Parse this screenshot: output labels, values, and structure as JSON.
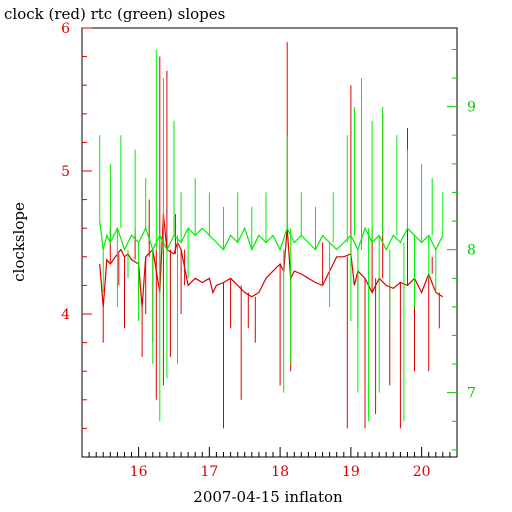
{
  "chart_data": {
    "type": "line",
    "title": "clock (red) rtc (green) slopes",
    "xlabel": "2007-04-15 inflaton",
    "ylabel": "clockslope",
    "y2label": "",
    "x_ticks": [
      "16",
      "17",
      "18",
      "19",
      "20"
    ],
    "y_ticks": [
      "4",
      "5",
      "6"
    ],
    "y2_ticks": [
      "7",
      "8",
      "9"
    ],
    "xlim": [
      15.2,
      20.5
    ],
    "ylim": [
      3.0,
      6.0
    ],
    "y2lim": [
      6.55,
      9.55
    ],
    "grid": false,
    "series": [
      {
        "name": "clock",
        "color": "#dd0000",
        "points": [
          [
            15.45,
            4.35
          ],
          [
            15.5,
            4.05
          ],
          [
            15.55,
            4.38
          ],
          [
            15.6,
            4.35
          ],
          [
            15.7,
            4.42
          ],
          [
            15.75,
            4.45
          ],
          [
            15.8,
            4.4
          ],
          [
            15.85,
            4.42
          ],
          [
            15.9,
            4.38
          ],
          [
            16.0,
            4.35
          ],
          [
            16.05,
            4.05
          ],
          [
            16.1,
            4.4
          ],
          [
            16.2,
            4.45
          ],
          [
            16.3,
            4.15
          ],
          [
            16.35,
            4.7
          ],
          [
            16.4,
            4.45
          ],
          [
            16.5,
            4.42
          ],
          [
            16.55,
            4.5
          ],
          [
            16.6,
            4.45
          ],
          [
            16.7,
            4.2
          ],
          [
            16.8,
            4.25
          ],
          [
            16.9,
            4.22
          ],
          [
            17.0,
            4.25
          ],
          [
            17.05,
            4.15
          ],
          [
            17.1,
            4.2
          ],
          [
            17.2,
            4.22
          ],
          [
            17.3,
            4.25
          ],
          [
            17.4,
            4.2
          ],
          [
            17.5,
            4.15
          ],
          [
            17.6,
            4.12
          ],
          [
            17.7,
            4.15
          ],
          [
            17.8,
            4.25
          ],
          [
            17.9,
            4.3
          ],
          [
            18.0,
            4.35
          ],
          [
            18.05,
            4.3
          ],
          [
            18.1,
            4.6
          ],
          [
            18.15,
            4.25
          ],
          [
            18.2,
            4.3
          ],
          [
            18.3,
            4.28
          ],
          [
            18.4,
            4.25
          ],
          [
            18.5,
            4.22
          ],
          [
            18.6,
            4.2
          ],
          [
            18.7,
            4.3
          ],
          [
            18.8,
            4.4
          ],
          [
            18.9,
            4.4
          ],
          [
            19.0,
            4.42
          ],
          [
            19.05,
            4.2
          ],
          [
            19.1,
            4.3
          ],
          [
            19.2,
            4.25
          ],
          [
            19.3,
            4.15
          ],
          [
            19.4,
            4.25
          ],
          [
            19.5,
            4.2
          ],
          [
            19.6,
            4.18
          ],
          [
            19.7,
            4.22
          ],
          [
            19.8,
            4.2
          ],
          [
            19.9,
            4.25
          ],
          [
            20.0,
            4.15
          ],
          [
            20.1,
            4.28
          ],
          [
            20.2,
            4.15
          ],
          [
            20.3,
            4.12
          ]
        ],
        "spikes": [
          [
            15.5,
            3.8
          ],
          [
            15.6,
            4.6
          ],
          [
            15.72,
            4.2
          ],
          [
            15.8,
            3.9
          ],
          [
            15.95,
            4.6
          ],
          [
            16.0,
            4.1
          ],
          [
            16.05,
            3.7
          ],
          [
            16.1,
            4.0
          ],
          [
            16.15,
            4.8
          ],
          [
            16.2,
            3.8
          ],
          [
            16.25,
            3.4
          ],
          [
            16.3,
            5.8
          ],
          [
            16.35,
            3.5
          ],
          [
            16.4,
            5.7
          ],
          [
            16.45,
            3.7
          ],
          [
            16.52,
            4.7
          ],
          [
            16.6,
            4.0
          ],
          [
            16.65,
            4.2
          ],
          [
            17.2,
            3.2
          ],
          [
            17.3,
            3.9
          ],
          [
            17.45,
            3.4
          ],
          [
            17.55,
            3.9
          ],
          [
            17.65,
            3.8
          ],
          [
            18.0,
            3.5
          ],
          [
            18.1,
            5.9
          ],
          [
            18.15,
            3.6
          ],
          [
            18.6,
            4.5
          ],
          [
            18.95,
            3.2
          ],
          [
            19.0,
            5.6
          ],
          [
            19.1,
            3.9
          ],
          [
            19.2,
            3.2
          ],
          [
            19.3,
            4.6
          ],
          [
            19.35,
            3.3
          ],
          [
            19.45,
            5.4
          ],
          [
            19.55,
            3.5
          ],
          [
            19.7,
            3.2
          ],
          [
            19.8,
            5.3
          ],
          [
            19.9,
            3.6
          ],
          [
            20.1,
            3.6
          ],
          [
            20.15,
            4.4
          ],
          [
            20.25,
            3.9
          ]
        ]
      },
      {
        "name": "rtc",
        "color": "#00ee00",
        "points": [
          [
            15.45,
            8.2
          ],
          [
            15.5,
            8.0
          ],
          [
            15.55,
            8.1
          ],
          [
            15.6,
            8.05
          ],
          [
            15.7,
            8.15
          ],
          [
            15.8,
            8.0
          ],
          [
            15.9,
            8.1
          ],
          [
            16.0,
            8.05
          ],
          [
            16.1,
            8.15
          ],
          [
            16.2,
            8.0
          ],
          [
            16.3,
            8.1
          ],
          [
            16.4,
            8.0
          ],
          [
            16.5,
            8.1
          ],
          [
            16.6,
            8.05
          ],
          [
            16.7,
            8.15
          ],
          [
            16.8,
            8.1
          ],
          [
            16.9,
            8.15
          ],
          [
            17.0,
            8.1
          ],
          [
            17.1,
            8.05
          ],
          [
            17.2,
            8.0
          ],
          [
            17.3,
            8.1
          ],
          [
            17.4,
            8.05
          ],
          [
            17.5,
            8.15
          ],
          [
            17.6,
            8.0
          ],
          [
            17.7,
            8.1
          ],
          [
            17.8,
            8.05
          ],
          [
            17.9,
            8.1
          ],
          [
            18.0,
            8.0
          ],
          [
            18.1,
            8.15
          ],
          [
            18.2,
            8.05
          ],
          [
            18.3,
            8.1
          ],
          [
            18.4,
            8.05
          ],
          [
            18.5,
            8.0
          ],
          [
            18.6,
            8.1
          ],
          [
            18.7,
            8.05
          ],
          [
            18.8,
            8.0
          ],
          [
            18.9,
            8.05
          ],
          [
            19.0,
            8.1
          ],
          [
            19.1,
            8.0
          ],
          [
            19.2,
            8.15
          ],
          [
            19.3,
            8.05
          ],
          [
            19.4,
            8.1
          ],
          [
            19.5,
            8.0
          ],
          [
            19.6,
            8.1
          ],
          [
            19.7,
            8.05
          ],
          [
            19.8,
            8.15
          ],
          [
            19.9,
            8.1
          ],
          [
            20.0,
            8.05
          ],
          [
            20.1,
            8.1
          ],
          [
            20.2,
            8.0
          ],
          [
            20.3,
            8.1
          ]
        ],
        "spikes": [
          [
            15.45,
            8.8
          ],
          [
            15.5,
            7.7
          ],
          [
            15.6,
            8.6
          ],
          [
            15.7,
            7.6
          ],
          [
            15.75,
            8.8
          ],
          [
            15.85,
            7.8
          ],
          [
            15.95,
            8.7
          ],
          [
            16.0,
            7.5
          ],
          [
            16.1,
            8.5
          ],
          [
            16.2,
            7.2
          ],
          [
            16.25,
            9.4
          ],
          [
            16.3,
            6.8
          ],
          [
            16.35,
            9.2
          ],
          [
            16.4,
            7.1
          ],
          [
            16.5,
            8.9
          ],
          [
            16.55,
            7.2
          ],
          [
            16.6,
            8.4
          ],
          [
            16.7,
            7.8
          ],
          [
            16.8,
            8.5
          ],
          [
            17.0,
            8.4
          ],
          [
            17.2,
            8.3
          ],
          [
            17.4,
            8.4
          ],
          [
            17.6,
            8.3
          ],
          [
            17.8,
            8.4
          ],
          [
            18.05,
            7.0
          ],
          [
            18.1,
            8.8
          ],
          [
            18.15,
            7.2
          ],
          [
            18.3,
            8.4
          ],
          [
            18.5,
            8.3
          ],
          [
            18.7,
            7.6
          ],
          [
            18.75,
            8.4
          ],
          [
            18.95,
            8.8
          ],
          [
            19.0,
            7.5
          ],
          [
            19.05,
            9.0
          ],
          [
            19.1,
            7.0
          ],
          [
            19.15,
            9.2
          ],
          [
            19.25,
            6.8
          ],
          [
            19.3,
            8.9
          ],
          [
            19.4,
            7.0
          ],
          [
            19.45,
            9.0
          ],
          [
            19.55,
            7.5
          ],
          [
            19.65,
            8.8
          ],
          [
            19.75,
            6.8
          ],
          [
            19.8,
            8.7
          ],
          [
            19.9,
            7.6
          ],
          [
            20.0,
            8.6
          ],
          [
            20.1,
            7.8
          ],
          [
            20.15,
            8.5
          ],
          [
            20.2,
            7.7
          ],
          [
            20.3,
            8.4
          ]
        ]
      }
    ]
  }
}
